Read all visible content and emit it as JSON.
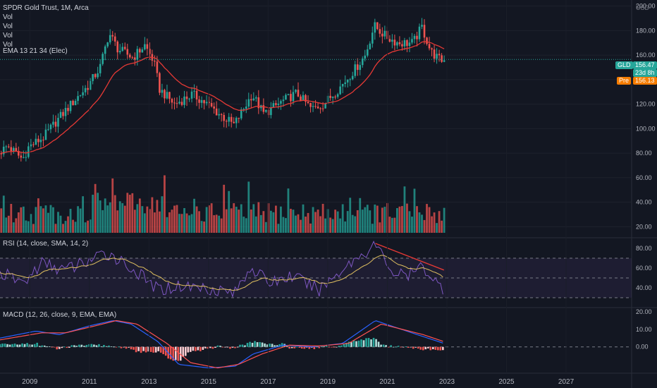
{
  "header": {
    "symbol_title": "SPDR Gold Trust, 1M, Arca",
    "indicators": [
      "Vol",
      "Vol",
      "Vol",
      "Vol",
      "EMA 13 21 34 (Elec)"
    ],
    "currency": "USD"
  },
  "price_tags": {
    "symbol": "GLD",
    "last": "156.47",
    "countdown": "23d 8h",
    "pre_label": "Pre",
    "pre_value": "156.13"
  },
  "rsi_title": "RSI (14, close, SMA, 14, 2)",
  "macd_title": "MACD (12, 26, close, 9, EMA, EMA)",
  "colors": {
    "up": "#26a69a",
    "down": "#ef5350",
    "ema": "#e53935",
    "rsi": "#7e57c2",
    "rsi_ma": "#e0c060",
    "macd": "#2962ff",
    "signal": "#ff5252"
  },
  "chart_data": [
    {
      "type": "candlestick",
      "title": "SPDR Gold Trust, 1M, Arca",
      "y_ticks": [
        "200.00",
        "180.00",
        "160.00",
        "140.00",
        "120.00",
        "100.00",
        "80.00",
        "60.00",
        "40.00",
        "20.00"
      ],
      "x_ticks": [
        "2009",
        "2011",
        "2013",
        "2015",
        "2017",
        "2019",
        "2021",
        "2023",
        "2025",
        "2027"
      ],
      "ylim": [
        15,
        205
      ],
      "price_path": [
        [
          2008.0,
          80
        ],
        [
          2008.3,
          86
        ],
        [
          2008.8,
          75
        ],
        [
          2009.0,
          85
        ],
        [
          2009.5,
          93
        ],
        [
          2010.0,
          108
        ],
        [
          2010.5,
          122
        ],
        [
          2011.0,
          135
        ],
        [
          2011.4,
          150
        ],
        [
          2011.7,
          178
        ],
        [
          2012.0,
          165
        ],
        [
          2012.5,
          158
        ],
        [
          2012.9,
          168
        ],
        [
          2013.2,
          155
        ],
        [
          2013.4,
          132
        ],
        [
          2013.9,
          120
        ],
        [
          2014.5,
          128
        ],
        [
          2015.0,
          120
        ],
        [
          2015.5,
          110
        ],
        [
          2015.9,
          103
        ],
        [
          2016.5,
          128
        ],
        [
          2016.9,
          112
        ],
        [
          2017.5,
          122
        ],
        [
          2018.0,
          129
        ],
        [
          2018.5,
          116
        ],
        [
          2018.9,
          120
        ],
        [
          2019.5,
          135
        ],
        [
          2020.0,
          150
        ],
        [
          2020.3,
          160
        ],
        [
          2020.6,
          184
        ],
        [
          2021.0,
          175
        ],
        [
          2021.4,
          170
        ],
        [
          2021.9,
          170
        ],
        [
          2022.2,
          183
        ],
        [
          2022.5,
          163
        ],
        [
          2022.8,
          156
        ]
      ],
      "volume_axis_ticks": [
        "60.00",
        "40.00",
        "20.00"
      ]
    },
    {
      "type": "line",
      "title": "RSI (14, close, SMA, 14, 2)",
      "y_ticks": [
        "80.00",
        "60.00",
        "40.00"
      ],
      "ylim": [
        20,
        90
      ],
      "bands": [
        30,
        50,
        70
      ],
      "rsi_path": [
        [
          2008.0,
          55
        ],
        [
          2008.8,
          45
        ],
        [
          2009.4,
          65
        ],
        [
          2010.2,
          58
        ],
        [
          2011.0,
          68
        ],
        [
          2011.7,
          75
        ],
        [
          2012.4,
          60
        ],
        [
          2013.3,
          38
        ],
        [
          2014.0,
          42
        ],
        [
          2015.0,
          40
        ],
        [
          2015.9,
          35
        ],
        [
          2016.4,
          62
        ],
        [
          2017.0,
          45
        ],
        [
          2017.8,
          52
        ],
        [
          2018.7,
          38
        ],
        [
          2019.6,
          62
        ],
        [
          2020.6,
          84
        ],
        [
          2021.2,
          55
        ],
        [
          2021.7,
          52
        ],
        [
          2022.2,
          62
        ],
        [
          2022.8,
          40
        ]
      ],
      "trendline": [
        [
          2020.6,
          85
        ],
        [
          2022.9,
          58
        ]
      ]
    },
    {
      "type": "line",
      "title": "MACD (12, 26, close, 9, EMA, EMA)",
      "y_ticks": [
        "20.00",
        "10.00",
        "0.00"
      ],
      "ylim": [
        -15,
        22
      ],
      "macd_path": [
        [
          2008.0,
          5
        ],
        [
          2009.2,
          9
        ],
        [
          2010.0,
          7
        ],
        [
          2011.0,
          12
        ],
        [
          2011.8,
          15
        ],
        [
          2012.4,
          13
        ],
        [
          2013.3,
          3
        ],
        [
          2014.0,
          -10
        ],
        [
          2015.0,
          -12
        ],
        [
          2015.9,
          -11
        ],
        [
          2016.5,
          -4
        ],
        [
          2017.5,
          1
        ],
        [
          2018.5,
          0
        ],
        [
          2019.5,
          2
        ],
        [
          2020.6,
          15
        ],
        [
          2021.3,
          11
        ],
        [
          2022.0,
          7
        ],
        [
          2022.9,
          2
        ]
      ],
      "signal_path": [
        [
          2008.0,
          4
        ],
        [
          2009.4,
          8
        ],
        [
          2010.2,
          8
        ],
        [
          2011.2,
          12
        ],
        [
          2011.9,
          15
        ],
        [
          2012.6,
          13
        ],
        [
          2013.6,
          2
        ],
        [
          2014.4,
          -9
        ],
        [
          2015.3,
          -12
        ],
        [
          2016.0,
          -10
        ],
        [
          2016.8,
          -4
        ],
        [
          2017.7,
          1
        ],
        [
          2018.7,
          0.5
        ],
        [
          2019.7,
          2
        ],
        [
          2020.8,
          13
        ],
        [
          2021.5,
          10
        ],
        [
          2022.2,
          7
        ],
        [
          2022.9,
          3
        ]
      ]
    }
  ]
}
